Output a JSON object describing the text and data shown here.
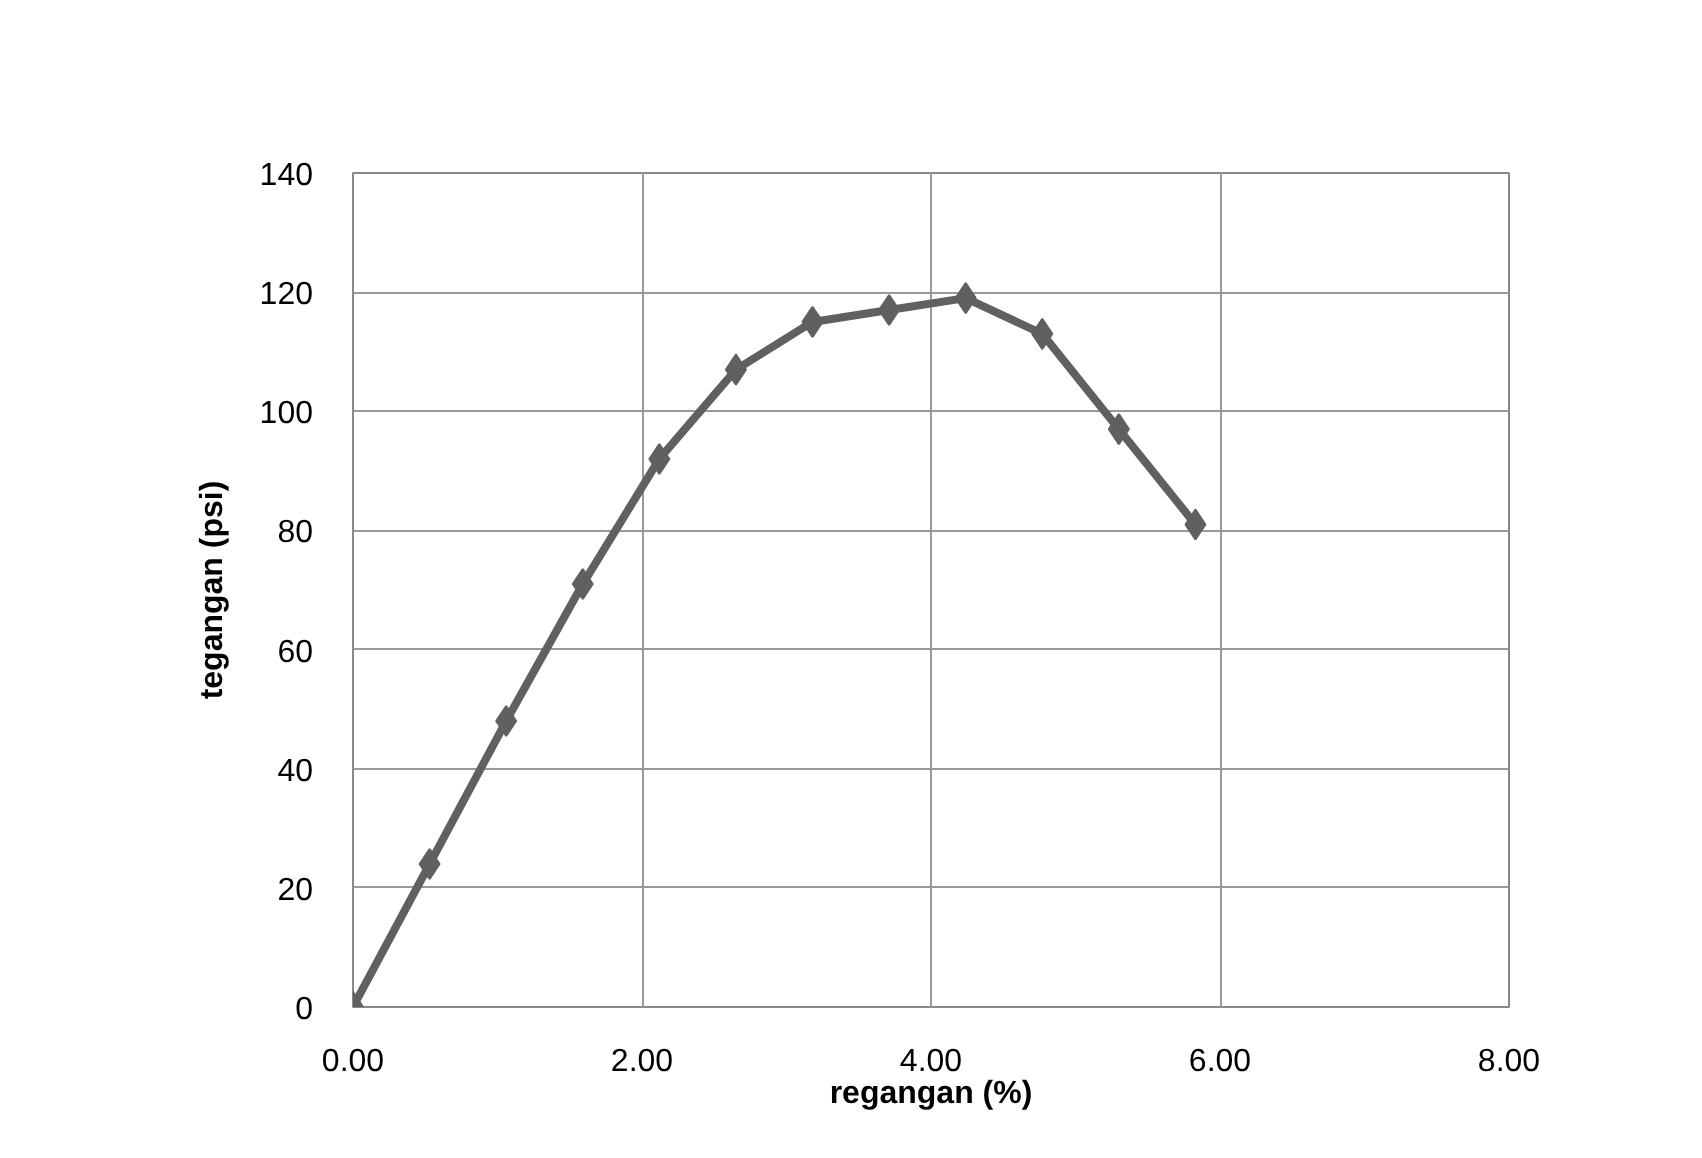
{
  "chart_data": {
    "type": "line",
    "xlabel": "regangan (%)",
    "ylabel": "tegangan (psi)",
    "x": [
      0,
      0.53,
      1.06,
      1.59,
      2.12,
      2.65,
      3.18,
      3.71,
      4.24,
      4.77,
      5.3,
      5.83
    ],
    "series": [
      {
        "color": "#606060",
        "values": [
          0,
          24,
          48,
          71,
          92,
          107,
          115,
          117,
          119,
          113,
          97,
          81
        ]
      }
    ],
    "xlim": [
      0,
      8
    ],
    "xticks": [
      {
        "value": 0,
        "label": "0.00"
      },
      {
        "value": 2,
        "label": "2.00"
      },
      {
        "value": 4,
        "label": "4.00"
      },
      {
        "value": 6,
        "label": "6.00"
      },
      {
        "value": 8,
        "label": "8.00"
      }
    ],
    "ylim": [
      0,
      140
    ],
    "yticks": [
      0,
      20,
      40,
      60,
      80,
      100,
      120,
      140
    ],
    "grid": true,
    "marker": "diamond",
    "line_style": "solid"
  }
}
